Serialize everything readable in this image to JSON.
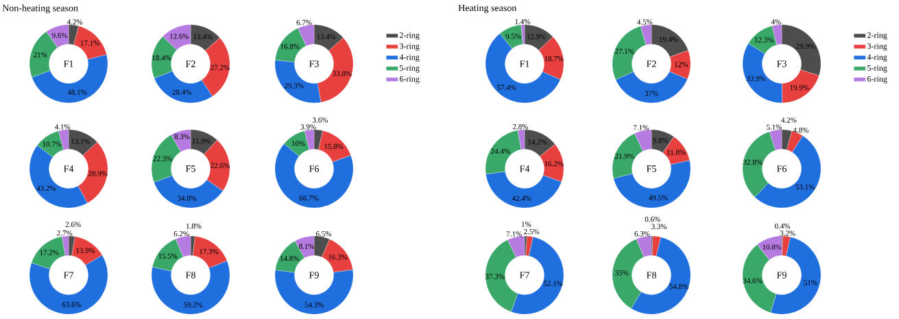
{
  "chart_data": [
    {
      "type": "donut",
      "title": "F1",
      "annotations": [
        "Non-heating season"
      ],
      "categories": [
        null,
        null,
        null,
        null,
        null
      ],
      "values": [
        4.2,
        17.1,
        48.1,
        21,
        9.6
      ],
      "value_labels": [
        "4.2%",
        "17.1%",
        "48.1%",
        "21%",
        "9.6%"
      ],
      "colors": [
        "#4d4d4d",
        "#e8403f",
        "#1f6fdf",
        "#3aa869",
        "#b57be0"
      ]
    },
    {
      "type": "donut",
      "title": "F2",
      "categories": [
        null,
        null,
        null,
        null,
        null
      ],
      "values": [
        13.4,
        27.2,
        28.4,
        18.4,
        12.6
      ],
      "value_labels": [
        "13.4%",
        "27.2%",
        "28.4%",
        "18.4%",
        "12.6%"
      ],
      "colors": [
        "#4d4d4d",
        "#e8403f",
        "#1f6fdf",
        "#3aa869",
        "#b57be0"
      ]
    },
    {
      "type": "donut",
      "title": "F3",
      "legend": "right",
      "categories": [
        "2-ring",
        "3-ring",
        "4-ring",
        "5-ring",
        "6-ring"
      ],
      "values": [
        13.4,
        33.8,
        29.3,
        16.8,
        6.7
      ],
      "value_labels": [
        "13.4%",
        "33.8%",
        "29.3%",
        "16.8%",
        "6.7%"
      ],
      "colors": [
        "#4d4d4d",
        "#e8403f",
        "#1f6fdf",
        "#3aa869",
        "#b57be0"
      ]
    },
    {
      "type": "donut",
      "title": "F4",
      "categories": [
        null,
        null,
        null,
        null,
        null
      ],
      "values": [
        13.1,
        28.9,
        43.2,
        10.7,
        4.1
      ],
      "value_labels": [
        "13.1%",
        "28.9%",
        "43.2%",
        "10.7%",
        "4.1%"
      ],
      "colors": [
        "#4d4d4d",
        "#e8403f",
        "#1f6fdf",
        "#3aa869",
        "#b57be0"
      ]
    },
    {
      "type": "donut",
      "title": "F5",
      "categories": [
        null,
        null,
        null,
        null,
        null
      ],
      "values": [
        11.9,
        22.6,
        34.8,
        22.3,
        8.3
      ],
      "value_labels": [
        "11.9%",
        "22.6%",
        "34.8%",
        "22.3%",
        "8.3%"
      ],
      "colors": [
        "#4d4d4d",
        "#e8403f",
        "#1f6fdf",
        "#3aa869",
        "#b57be0"
      ]
    },
    {
      "type": "donut",
      "title": "F6",
      "categories": [
        null,
        null,
        null,
        null,
        null
      ],
      "values": [
        3.6,
        15.8,
        66.7,
        10,
        3.9
      ],
      "value_labels": [
        "3.6%",
        "15.8%",
        "66.7%",
        "10%",
        "3.9%"
      ],
      "colors": [
        "#4d4d4d",
        "#e8403f",
        "#1f6fdf",
        "#3aa869",
        "#b57be0"
      ]
    },
    {
      "type": "donut",
      "title": "F7",
      "categories": [
        null,
        null,
        null,
        null,
        null
      ],
      "values": [
        2.6,
        13.9,
        63.6,
        17.2,
        2.7
      ],
      "value_labels": [
        "2.6%",
        "13.9%",
        "63.6%",
        "17.2%",
        "2.7%"
      ],
      "colors": [
        "#4d4d4d",
        "#e8403f",
        "#1f6fdf",
        "#3aa869",
        "#b57be0"
      ]
    },
    {
      "type": "donut",
      "title": "F8",
      "categories": [
        null,
        null,
        null,
        null,
        null
      ],
      "values": [
        1.8,
        17.3,
        59.2,
        15.5,
        6.2
      ],
      "value_labels": [
        "1.8%",
        "17.3%",
        "59.2%",
        "15.5%",
        "6.2%"
      ],
      "colors": [
        "#4d4d4d",
        "#e8403f",
        "#1f6fdf",
        "#3aa869",
        "#b57be0"
      ]
    },
    {
      "type": "donut",
      "title": "F9",
      "categories": [
        null,
        null,
        null,
        null,
        null
      ],
      "values": [
        6.5,
        16.3,
        54.3,
        14.8,
        8.1
      ],
      "value_labels": [
        "6.5%",
        "16.3%",
        "54.3%",
        "14.8%",
        "8.1%"
      ],
      "colors": [
        "#4d4d4d",
        "#e8403f",
        "#1f6fdf",
        "#3aa869",
        "#b57be0"
      ]
    },
    {
      "type": "donut",
      "title": "F1",
      "annotations": [
        "Heating season"
      ],
      "categories": [
        null,
        null,
        null,
        null,
        null
      ],
      "values": [
        12.9,
        18.7,
        57.4,
        9.5,
        1.4
      ],
      "value_labels": [
        "12.9%",
        "18.7%",
        "57.4%",
        "9.5%",
        "1.4%"
      ],
      "colors": [
        "#4d4d4d",
        "#e8403f",
        "#1f6fdf",
        "#3aa869",
        "#b57be0"
      ]
    },
    {
      "type": "donut",
      "title": "F2",
      "categories": [
        null,
        null,
        null,
        null,
        null
      ],
      "values": [
        19.4,
        12,
        37,
        27.1,
        4.5
      ],
      "value_labels": [
        "19.4%",
        "12%",
        "37%",
        "27.1%",
        "4.5%"
      ],
      "colors": [
        "#4d4d4d",
        "#e8403f",
        "#1f6fdf",
        "#3aa869",
        "#b57be0"
      ]
    },
    {
      "type": "donut",
      "title": "F3",
      "legend": "right",
      "categories": [
        "2-ring",
        "3-ring",
        "4-ring",
        "5-ring",
        "6-ring"
      ],
      "values": [
        29.9,
        19.9,
        33.9,
        12.3,
        4
      ],
      "value_labels": [
        "29.9%",
        "19.9%",
        "33.9%",
        "12.3%",
        "4%"
      ],
      "colors": [
        "#4d4d4d",
        "#e8403f",
        "#1f6fdf",
        "#3aa869",
        "#b57be0"
      ]
    },
    {
      "type": "donut",
      "title": "F4",
      "categories": [
        null,
        null,
        null,
        null,
        null
      ],
      "values": [
        14.2,
        16.2,
        42.4,
        24.4,
        2.8
      ],
      "value_labels": [
        "14.2%",
        "16.2%",
        "42.4%",
        "24.4%",
        "2.8%"
      ],
      "colors": [
        "#4d4d4d",
        "#e8403f",
        "#1f6fdf",
        "#3aa869",
        "#b57be0"
      ]
    },
    {
      "type": "donut",
      "title": "F5",
      "categories": [
        null,
        null,
        null,
        null,
        null
      ],
      "values": [
        9.8,
        11.8,
        49.5,
        21.9,
        7.1
      ],
      "value_labels": [
        "9.8%",
        "11.8%",
        "49.5%",
        "21.9%",
        "7.1%"
      ],
      "colors": [
        "#4d4d4d",
        "#e8403f",
        "#1f6fdf",
        "#3aa869",
        "#b57be0"
      ]
    },
    {
      "type": "donut",
      "title": "F6",
      "categories": [
        null,
        null,
        null,
        null,
        null
      ],
      "values": [
        4.2,
        4.8,
        53.1,
        32.8,
        5.1
      ],
      "value_labels": [
        "4.2%",
        "4.8%",
        "53.1%",
        "32.8%",
        "5.1%"
      ],
      "colors": [
        "#4d4d4d",
        "#e8403f",
        "#1f6fdf",
        "#3aa869",
        "#b57be0"
      ]
    },
    {
      "type": "donut",
      "title": "F7",
      "categories": [
        null,
        null,
        null,
        null,
        null
      ],
      "values": [
        1,
        2.5,
        52.1,
        37.3,
        7.1
      ],
      "value_labels": [
        "1%",
        "2.5%",
        "52.1%",
        "37.3%",
        "7.1%"
      ],
      "colors": [
        "#4d4d4d",
        "#e8403f",
        "#1f6fdf",
        "#3aa869",
        "#b57be0"
      ]
    },
    {
      "type": "donut",
      "title": "F8",
      "categories": [
        null,
        null,
        null,
        null,
        null
      ],
      "values": [
        0.6,
        3.3,
        54.8,
        35,
        6.3
      ],
      "value_labels": [
        "0.6%",
        "3.3%",
        "54.8%",
        "35%",
        "6.3%"
      ],
      "colors": [
        "#4d4d4d",
        "#e8403f",
        "#1f6fdf",
        "#3aa869",
        "#b57be0"
      ]
    },
    {
      "type": "donut",
      "title": "F9",
      "categories": [
        null,
        null,
        null,
        null,
        null
      ],
      "values": [
        0.4,
        3.2,
        51,
        34.6,
        10.8
      ],
      "value_labels": [
        "0.4%",
        "3.2%",
        "51%",
        "34.6%",
        "10.8%"
      ],
      "colors": [
        "#4d4d4d",
        "#e8403f",
        "#1f6fdf",
        "#3aa869",
        "#b57be0"
      ]
    }
  ]
}
